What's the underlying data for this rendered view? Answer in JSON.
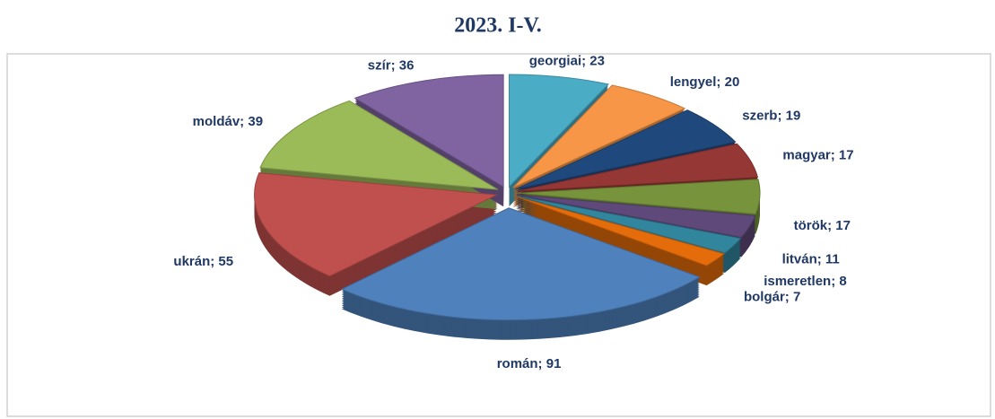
{
  "chart_data": {
    "type": "pie3d",
    "title": "2023. I-V.",
    "categories": [
      "georgiai",
      "lengyel",
      "szerb",
      "magyar",
      "török",
      "litván",
      "ismeretlen",
      "bolgár",
      "román",
      "ukrán",
      "moldáv",
      "szír"
    ],
    "values": [
      23,
      20,
      19,
      17,
      17,
      11,
      8,
      7,
      91,
      55,
      39,
      36
    ],
    "value_labels": [
      "georgiai; 23",
      "lengyel; 20",
      "szerb; 19",
      "magyar; 17",
      "török; 17",
      "litván; 11",
      "ismeretlen; 8",
      "bolgár; 7",
      "román; 91",
      "ukrán; 55",
      "moldáv; 39",
      "szír; 36"
    ],
    "colors": [
      "#4bacc6",
      "#f79646",
      "#1f497d",
      "#953735",
      "#77933c",
      "#5f497a",
      "#31859c",
      "#e46c0a",
      "#4f81bd",
      "#c0504d",
      "#9bbb59",
      "#8064a2"
    ]
  }
}
